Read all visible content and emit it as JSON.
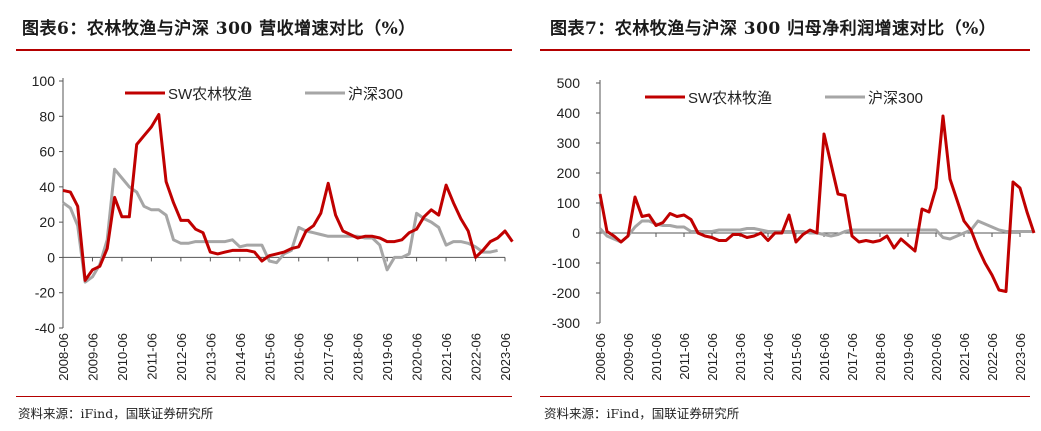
{
  "panels": [
    {
      "title": "图表6：农林牧渔与沪深 300 营收增速对比（%）",
      "source": "资料来源：iFind，国联证券研究所"
    },
    {
      "title": "图表7：农林牧渔与沪深 300 归母净利润增速对比（%）",
      "source": "资料来源：iFind，国联证券研究所"
    }
  ],
  "colors": {
    "sw": "#c00000",
    "hs300": "#a6a6a6",
    "rule": "#b40000"
  },
  "chart_data": [
    {
      "type": "line",
      "title": "农林牧渔与沪深 300 营收增速对比（%）",
      "xlabel": "",
      "ylabel": "",
      "ylim": [
        -40,
        100
      ],
      "yticks": [
        -40,
        -20,
        0,
        20,
        40,
        60,
        80,
        100
      ],
      "x_start": "2008-06",
      "x_step": "quarter",
      "xtick_labels": [
        "2008-06",
        "2009-06",
        "2010-06",
        "2011-06",
        "2012-06",
        "2013-06",
        "2014-06",
        "2015-06",
        "2016-06",
        "2017-06",
        "2018-06",
        "2019-06",
        "2020-06",
        "2021-06",
        "2022-06",
        "2023-06"
      ],
      "legend_position": "top-center",
      "series": [
        {
          "name": "SW农林牧渔",
          "values": [
            38,
            37,
            29,
            -13,
            -7,
            -5,
            5,
            34,
            23,
            23,
            64,
            69,
            74,
            81,
            43,
            31,
            21,
            21,
            16,
            14,
            3,
            2,
            3,
            4,
            4,
            4,
            3,
            -2,
            1,
            2,
            3,
            5,
            6,
            15,
            18,
            25,
            42,
            24,
            15,
            13,
            11,
            12,
            12,
            11,
            9,
            9,
            10,
            14,
            16,
            23,
            27,
            24,
            41,
            31,
            22,
            15,
            0,
            4,
            9,
            11,
            15,
            9
          ]
        },
        {
          "name": "沪深300",
          "values": [
            31,
            28,
            18,
            -14,
            -11,
            -4,
            10,
            50,
            45,
            40,
            37,
            29,
            27,
            27,
            24,
            10,
            8,
            8,
            9,
            9,
            9,
            9,
            9,
            10,
            6,
            7,
            7,
            7,
            -2,
            -3,
            2,
            4,
            17,
            15,
            14,
            13,
            12,
            12,
            12,
            12,
            12,
            11,
            11,
            7,
            -7,
            0,
            0,
            2,
            25,
            22,
            20,
            17,
            7,
            9,
            9,
            8,
            6,
            3,
            3,
            4
          ]
        }
      ]
    },
    {
      "type": "line",
      "title": "农林牧渔与沪深 300 归母净利润增速对比（%）",
      "xlabel": "",
      "ylabel": "",
      "ylim": [
        -300,
        500
      ],
      "yticks": [
        -300,
        -200,
        -100,
        0,
        100,
        200,
        300,
        400,
        500
      ],
      "x_start": "2008-06",
      "x_step": "quarter",
      "xtick_labels": [
        "2008-06",
        "2009-06",
        "2010-06",
        "2011-06",
        "2012-06",
        "2013-06",
        "2014-06",
        "2015-06",
        "2016-06",
        "2017-06",
        "2018-06",
        "2019-06",
        "2020-06",
        "2021-06",
        "2022-06",
        "2023-06"
      ],
      "legend_position": "top-center",
      "series": [
        {
          "name": "SW农林牧渔",
          "values": [
            130,
            5,
            -10,
            -30,
            -10,
            120,
            55,
            60,
            25,
            35,
            65,
            55,
            60,
            45,
            0,
            -10,
            -15,
            -25,
            -25,
            -5,
            -5,
            -15,
            -10,
            0,
            -25,
            0,
            0,
            60,
            -30,
            -5,
            10,
            0,
            330,
            230,
            130,
            125,
            -10,
            -30,
            -25,
            -30,
            -25,
            -10,
            -50,
            -20,
            -40,
            -60,
            80,
            70,
            150,
            390,
            180,
            110,
            40,
            10,
            -50,
            -100,
            -140,
            -190,
            -195,
            170,
            150,
            70,
            0
          ]
        },
        {
          "name": "沪深300",
          "values": [
            15,
            -10,
            -20,
            -30,
            -10,
            20,
            40,
            40,
            30,
            25,
            25,
            20,
            20,
            5,
            5,
            5,
            5,
            10,
            10,
            10,
            10,
            15,
            15,
            10,
            5,
            5,
            5,
            5,
            5,
            5,
            0,
            0,
            -5,
            -10,
            -5,
            5,
            10,
            10,
            10,
            10,
            10,
            10,
            10,
            10,
            10,
            10,
            10,
            10,
            10,
            -15,
            -20,
            -10,
            0,
            10,
            40,
            30,
            20,
            10,
            5,
            5,
            5,
            5,
            5
          ]
        }
      ]
    }
  ]
}
